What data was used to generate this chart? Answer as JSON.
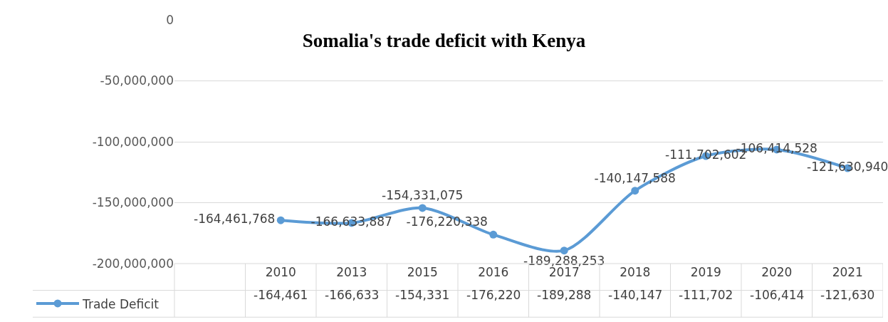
{
  "chart_data": {
    "type": "line",
    "title": "Somalia's trade deficit with Kenya",
    "categories": [
      "2010",
      "2013",
      "2015",
      "2016",
      "2017",
      "2018",
      "2019",
      "2020",
      "2021"
    ],
    "series": [
      {
        "name": "Trade Deficit",
        "color": "#5b9bd5",
        "values": [
          -164461768,
          -166633887,
          -154331075,
          -176220338,
          -189288253,
          -140147588,
          -111702602,
          -106414528,
          -121630940
        ],
        "value_labels": [
          "-164,461,768",
          "-166,633,887",
          "-154,331,075",
          "-176,220,338",
          "-189,288,253",
          "-140,147,588",
          "-111,702,602",
          "-106,414,528",
          "-121,630,940"
        ]
      }
    ],
    "annotations": [
      "-164,461",
      "-166,633",
      "-154,331",
      "-176,220",
      "-189,288",
      "-140,147",
      "-111,702",
      "-106,414",
      "-121,630"
    ],
    "ylim": [
      -200000000,
      0
    ],
    "yticks": [
      {
        "value": -200000000,
        "label": "-200,000,000"
      },
      {
        "value": -150000000,
        "label": "-150,000,000"
      },
      {
        "value": -100000000,
        "label": "-100,000,000"
      },
      {
        "value": -50000000,
        "label": "-50,000,000"
      },
      0
    ],
    "grid": "y",
    "legend": "bottom left",
    "marker": "circle",
    "line_style": "solid"
  }
}
